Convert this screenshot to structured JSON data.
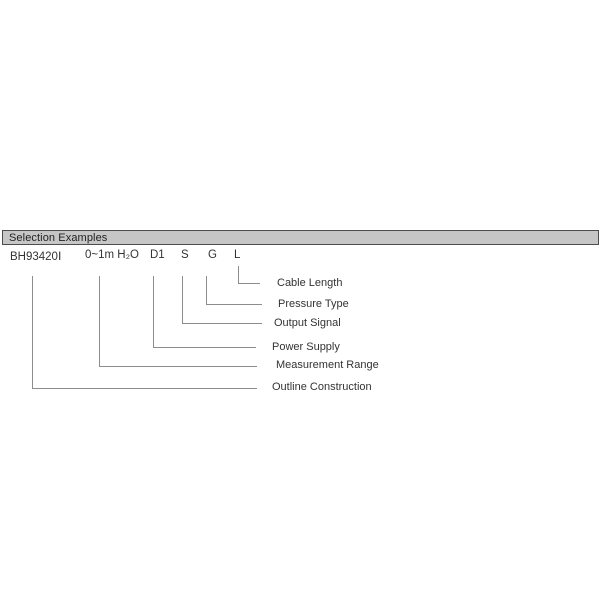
{
  "header": {
    "title": "Selection Examples"
  },
  "colors": {
    "header_bg": "#c6c6c6",
    "header_border": "#4d4d4d",
    "connector_line": "#8c8c8c",
    "text": "#333333"
  },
  "diagram": {
    "items": [
      {
        "code": "BH93420Ⅰ",
        "label": "Outline Construction"
      },
      {
        "code": "0~1m H₂O",
        "label": "Measurement Range"
      },
      {
        "code": "D1",
        "label": "Power Supply"
      },
      {
        "code": "S",
        "label": "Output Signal"
      },
      {
        "code": "G",
        "label": "Pressure Type"
      },
      {
        "code": "L",
        "label": "Cable Length"
      }
    ]
  }
}
